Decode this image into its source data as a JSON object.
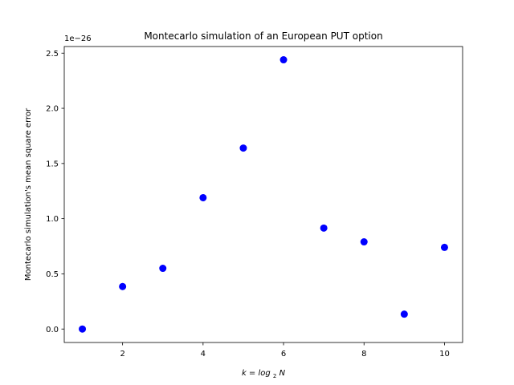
{
  "chart_data": {
    "type": "scatter",
    "title": "Montecarlo simulation of an European PUT option",
    "xlabel": "k = log2N",
    "ylabel": "Montecarlo simulation's mean square error",
    "y_offset_label": "1e−26",
    "xlim": [
      0.55,
      10.45
    ],
    "ylim": [
      -0.122,
      2.56
    ],
    "x_ticks": [
      2,
      4,
      6,
      8,
      10
    ],
    "x_tick_labels": [
      "2",
      "4",
      "6",
      "8",
      "10"
    ],
    "y_ticks": [
      0.0,
      0.5,
      1.0,
      1.5,
      2.0,
      2.5
    ],
    "y_tick_labels": [
      "0.0",
      "0.5",
      "1.0",
      "1.5",
      "2.0",
      "2.5"
    ],
    "grid": false,
    "series": [
      {
        "color": "#0000ff",
        "marker": "circle",
        "x": [
          1,
          2,
          3,
          4,
          5,
          6,
          7,
          8,
          9,
          10
        ],
        "y": [
          0.0,
          0.385,
          0.55,
          1.19,
          1.64,
          2.44,
          0.915,
          0.79,
          0.135,
          0.74
        ]
      }
    ]
  }
}
